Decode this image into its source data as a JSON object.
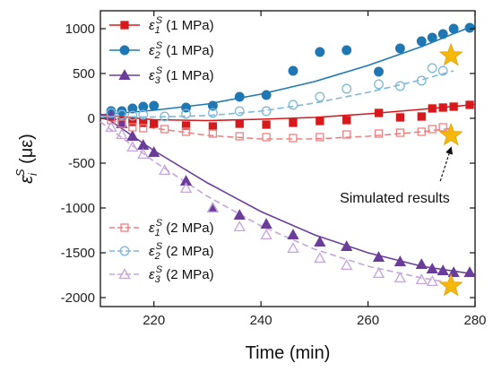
{
  "chart_data": {
    "type": "scatter",
    "xlabel": "Time (min)",
    "ylabel": "ε_i^S (με)",
    "ylabel_base": "ε",
    "ylabel_sub": "i",
    "ylabel_sup": "S",
    "ylabel_unit": " (με)",
    "xlim": [
      210,
      280
    ],
    "ylim": [
      -2100,
      1200
    ],
    "xticks": [
      220,
      240,
      260,
      280
    ],
    "yticks": [
      -2000,
      -1500,
      -1000,
      -500,
      0,
      500,
      1000
    ],
    "grid": false,
    "legend_placement": "top-left and bottom-left",
    "series": [
      {
        "name": "ε_1^S (1 MPa)",
        "legend_symbol": "ε",
        "legend_sub": "1",
        "legend_sup": "S",
        "legend_suffix": " (1 MPa)",
        "color": "#d7191c",
        "marker": "square",
        "filled": true,
        "line": "solid",
        "x": [
          212,
          214,
          216,
          218,
          220,
          226,
          231,
          236,
          241,
          246,
          251,
          256,
          262,
          266,
          270,
          272,
          274,
          276,
          279
        ],
        "y": [
          20,
          -20,
          -40,
          -50,
          -60,
          -80,
          -90,
          -60,
          -70,
          -50,
          -30,
          -20,
          60,
          10,
          20,
          110,
          120,
          130,
          150
        ],
        "fit_x": [
          210,
          220,
          230,
          240,
          250,
          260,
          270,
          280
        ],
        "fit_y": [
          40,
          -15,
          -25,
          -10,
          10,
          50,
          100,
          155
        ]
      },
      {
        "name": "ε_2^S (1 MPa)",
        "legend_symbol": "ε",
        "legend_sub": "2",
        "legend_sup": "S",
        "legend_suffix": " (1 MPa)",
        "color": "#1f78b4",
        "marker": "circle",
        "filled": true,
        "line": "solid",
        "x": [
          212,
          214,
          216,
          218,
          220,
          226,
          231,
          236,
          241,
          246,
          251,
          256,
          262,
          266,
          270,
          272,
          274,
          276,
          279
        ],
        "y": [
          80,
          80,
          110,
          130,
          140,
          120,
          140,
          240,
          260,
          530,
          740,
          760,
          520,
          780,
          860,
          900,
          940,
          1000,
          1010
        ],
        "fit_x": [
          210,
          220,
          230,
          240,
          250,
          260,
          270,
          280
        ],
        "fit_y": [
          40,
          90,
          160,
          270,
          410,
          590,
          800,
          1040
        ]
      },
      {
        "name": "ε_3^S (1 MPa)",
        "legend_symbol": "ε",
        "legend_sub": "3",
        "legend_sup": "S",
        "legend_suffix": " (1 MPa)",
        "color": "#6a3d9a",
        "marker": "triangle",
        "filled": true,
        "line": "solid",
        "x": [
          212,
          214,
          216,
          218,
          220,
          226,
          231,
          236,
          241,
          246,
          251,
          256,
          262,
          266,
          270,
          272,
          274,
          276,
          279
        ],
        "y": [
          30,
          -60,
          -200,
          -300,
          -380,
          -700,
          -1000,
          -1080,
          -1180,
          -1300,
          -1380,
          -1430,
          -1550,
          -1600,
          -1630,
          -1680,
          -1700,
          -1720,
          -1720
        ],
        "fit_x": [
          210,
          220,
          230,
          240,
          250,
          260,
          270,
          280
        ],
        "fit_y": [
          50,
          -360,
          -720,
          -1040,
          -1300,
          -1500,
          -1650,
          -1740
        ]
      },
      {
        "name": "ε_1^S (2 MPa)",
        "legend_symbol": "ε",
        "legend_sub": "1",
        "legend_sup": "S",
        "legend_suffix": " (2 MPa)",
        "color": "#f08080",
        "marker": "square",
        "filled": false,
        "line": "dashed",
        "x": [
          212,
          214,
          216,
          218,
          222,
          226,
          231,
          236,
          241,
          246,
          251,
          256,
          262,
          266,
          270,
          272,
          274
        ],
        "y": [
          -20,
          -60,
          -100,
          -110,
          -120,
          -150,
          -170,
          -200,
          -210,
          -220,
          -210,
          -180,
          -170,
          -160,
          -150,
          -120,
          -100
        ],
        "fit_x": [
          210,
          220,
          230,
          240,
          250,
          260,
          270,
          276
        ],
        "fit_y": [
          0,
          -110,
          -190,
          -230,
          -230,
          -200,
          -150,
          -110
        ]
      },
      {
        "name": "ε_2^S (2 MPa)",
        "legend_symbol": "ε",
        "legend_sub": "2",
        "legend_sup": "S",
        "legend_suffix": " (2 MPa)",
        "color": "#7fb8d8",
        "marker": "circle",
        "filled": false,
        "line": "dashed",
        "x": [
          212,
          214,
          216,
          218,
          222,
          226,
          231,
          236,
          241,
          246,
          251,
          256,
          262,
          266,
          270,
          272,
          274
        ],
        "y": [
          60,
          40,
          30,
          40,
          20,
          50,
          60,
          80,
          80,
          150,
          240,
          330,
          380,
          360,
          420,
          560,
          530
        ],
        "fit_x": [
          210,
          220,
          230,
          240,
          250,
          260,
          270,
          276
        ],
        "fit_y": [
          20,
          15,
          30,
          80,
          170,
          290,
          430,
          530
        ]
      },
      {
        "name": "ε_3^S (2 MPa)",
        "legend_symbol": "ε",
        "legend_sub": "3",
        "legend_sup": "S",
        "legend_suffix": " (2 MPa)",
        "color": "#c5a5dc",
        "marker": "triangle",
        "filled": false,
        "line": "dashed",
        "x": [
          212,
          214,
          216,
          218,
          222,
          226,
          231,
          236,
          241,
          246,
          251,
          256,
          262,
          266,
          270,
          272
        ],
        "y": [
          -100,
          -180,
          -320,
          -400,
          -580,
          -780,
          -1000,
          -1210,
          -1300,
          -1450,
          -1560,
          -1640,
          -1730,
          -1780,
          -1800,
          -1820
        ],
        "fit_x": [
          210,
          220,
          230,
          240,
          250,
          260,
          270,
          274
        ],
        "fit_y": [
          -40,
          -480,
          -870,
          -1200,
          -1460,
          -1650,
          -1780,
          -1820
        ]
      }
    ],
    "simulated_stars": {
      "color": "#f5b80a",
      "x": [
        275.5,
        275.5,
        275.5
      ],
      "y": [
        700,
        -190,
        -1870
      ]
    },
    "annotation": {
      "text": "Simulated results",
      "arrow_from": [
        273.5,
        -700
      ],
      "arrow_to": [
        275.5,
        -330
      ],
      "text_at": [
        265,
        -940
      ]
    }
  }
}
